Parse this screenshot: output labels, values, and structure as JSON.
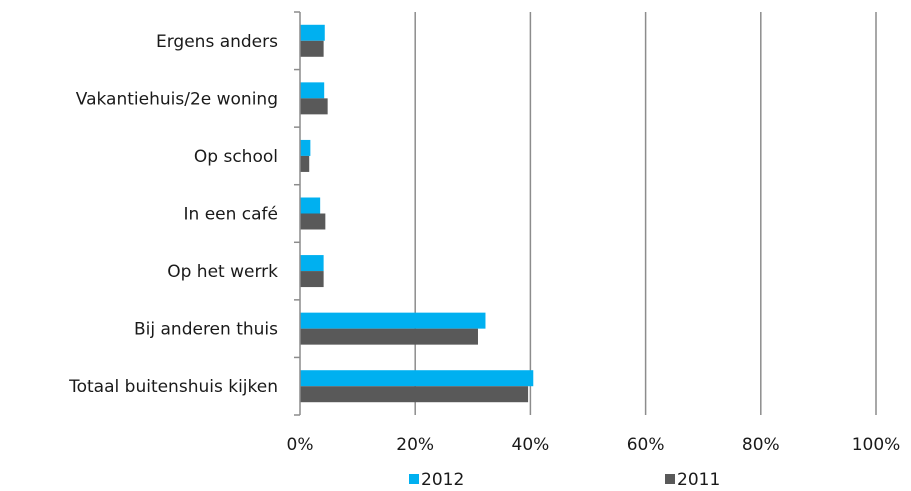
{
  "chart_data": {
    "type": "bar",
    "orientation": "horizontal",
    "categories": [
      "Ergens anders",
      "Vakantiehuis/2e woning",
      "Op school",
      "In een café",
      "Op  het werrk",
      "Bij anderen thuis",
      "Totaal buitenshuis kijken"
    ],
    "series": [
      {
        "name": "2012",
        "color": "#00b0f0",
        "values": [
          4.3,
          4.2,
          1.8,
          3.5,
          4.1,
          32.2,
          40.5
        ]
      },
      {
        "name": "2011",
        "color": "#595959",
        "values": [
          4.1,
          4.8,
          1.6,
          4.4,
          4.1,
          30.9,
          39.6
        ]
      }
    ],
    "xlim": [
      0,
      100
    ],
    "xticks": [
      0,
      20,
      40,
      60,
      80,
      100
    ],
    "xtick_labels": [
      "0%",
      "20%",
      "40%",
      "60%",
      "80%",
      "100%"
    ],
    "grid": "vertical",
    "legend_position": "bottom"
  }
}
